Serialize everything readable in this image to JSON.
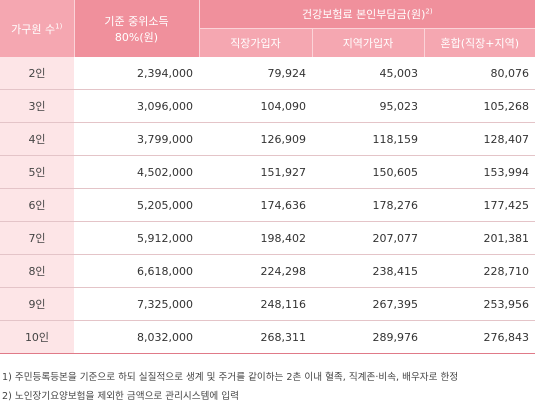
{
  "header": {
    "household": "가구원 수",
    "household_note": "1)",
    "income_line1": "기준 중위소득",
    "income_line2": "80%(원)",
    "premium_group": "건강보험료 본인부담금(원)",
    "premium_note": "2)",
    "employee": "직장가입자",
    "regional": "지역가입자",
    "mixed": "혼합(직장+지역)"
  },
  "rows": [
    {
      "size": "2인",
      "income": "2,394,000",
      "employee": "79,924",
      "regional": "45,003",
      "mixed": "80,076"
    },
    {
      "size": "3인",
      "income": "3,096,000",
      "employee": "104,090",
      "regional": "95,023",
      "mixed": "105,268"
    },
    {
      "size": "4인",
      "income": "3,799,000",
      "employee": "126,909",
      "regional": "118,159",
      "mixed": "128,407"
    },
    {
      "size": "5인",
      "income": "4,502,000",
      "employee": "151,927",
      "regional": "150,605",
      "mixed": "153,994"
    },
    {
      "size": "6인",
      "income": "5,205,000",
      "employee": "174,636",
      "regional": "178,276",
      "mixed": "177,425"
    },
    {
      "size": "7인",
      "income": "5,912,000",
      "employee": "198,402",
      "regional": "207,077",
      "mixed": "201,381"
    },
    {
      "size": "8인",
      "income": "6,618,000",
      "employee": "224,298",
      "regional": "238,415",
      "mixed": "228,710"
    },
    {
      "size": "9인",
      "income": "7,325,000",
      "employee": "248,116",
      "regional": "267,395",
      "mixed": "253,956"
    },
    {
      "size": "10인",
      "income": "8,032,000",
      "employee": "268,311",
      "regional": "289,976",
      "mixed": "276,843"
    }
  ],
  "notes": [
    "1) 주민등록등본을 기준으로 하되 실질적으로 생계 및 주거를 같이하는 2촌 이내 혈족, 직계존·비속, 배우자로 한정",
    "2) 노인장기요양보험을 제외한 금액으로 관리시스템에 입력"
  ],
  "colors": {
    "header_dark": "#f0909c",
    "header_light": "#f5a7b1",
    "label_bg": "#fde5e7"
  }
}
